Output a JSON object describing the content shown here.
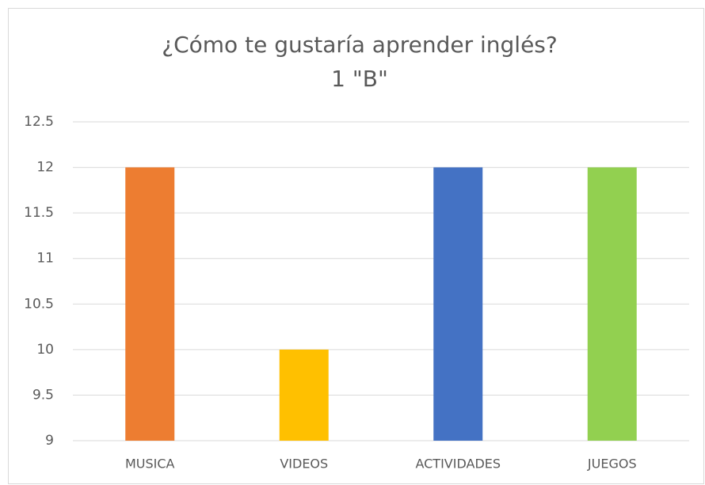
{
  "chart_data": {
    "type": "bar",
    "title": "¿Cómo te gustaría aprender inglés?",
    "subtitle": "1 \"B\"",
    "categories": [
      "MUSICA",
      "VIDEOS",
      "ACTIVIDADES",
      "JUEGOS"
    ],
    "values": [
      12,
      10,
      12,
      12
    ],
    "colors": [
      "#ed7d31",
      "#ffc000",
      "#4472c4",
      "#92d050"
    ],
    "ylim": [
      9,
      12.5
    ],
    "yticks": [
      9,
      9.5,
      10,
      10.5,
      11,
      11.5,
      12,
      12.5
    ],
    "grid": true
  }
}
